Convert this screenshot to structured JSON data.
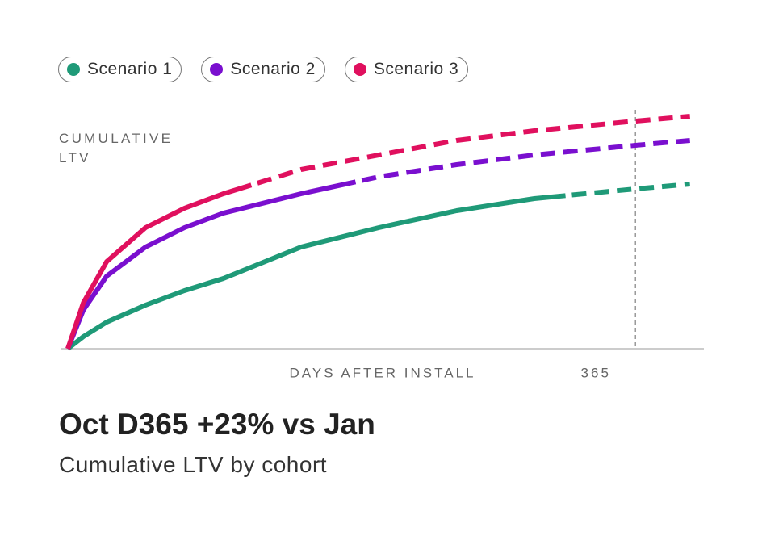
{
  "chart_data": {
    "type": "line",
    "title": "Oct D365 +23% vs Jan",
    "subtitle": "Cumulative LTV by cohort",
    "y_label": "CUMULATIVE LTV",
    "x_label": "DAYS AFTER INSTALL",
    "x": [
      0,
      10,
      25,
      50,
      75,
      100,
      150,
      200,
      250,
      300,
      365,
      400
    ],
    "series": [
      {
        "name": "Scenario 1",
        "color": "#1f9a78",
        "forecast_from": 320,
        "values": [
          0,
          5,
          11,
          18,
          24,
          29,
          42,
          50,
          57,
          62,
          66,
          68
        ]
      },
      {
        "name": "Scenario 2",
        "color": "#7a0fcf",
        "forecast_from": 185,
        "values": [
          0,
          16,
          30,
          42,
          50,
          56,
          64,
          71,
          76,
          80,
          84,
          86
        ]
      },
      {
        "name": "Scenario 3",
        "color": "#e0105e",
        "forecast_from": 118,
        "values": [
          0,
          19,
          36,
          50,
          58,
          64,
          74,
          80,
          86,
          90,
          94,
          96
        ]
      }
    ],
    "xlim": [
      0,
      409
    ],
    "xticks": [
      365
    ],
    "ylim": [
      0,
      100
    ]
  }
}
